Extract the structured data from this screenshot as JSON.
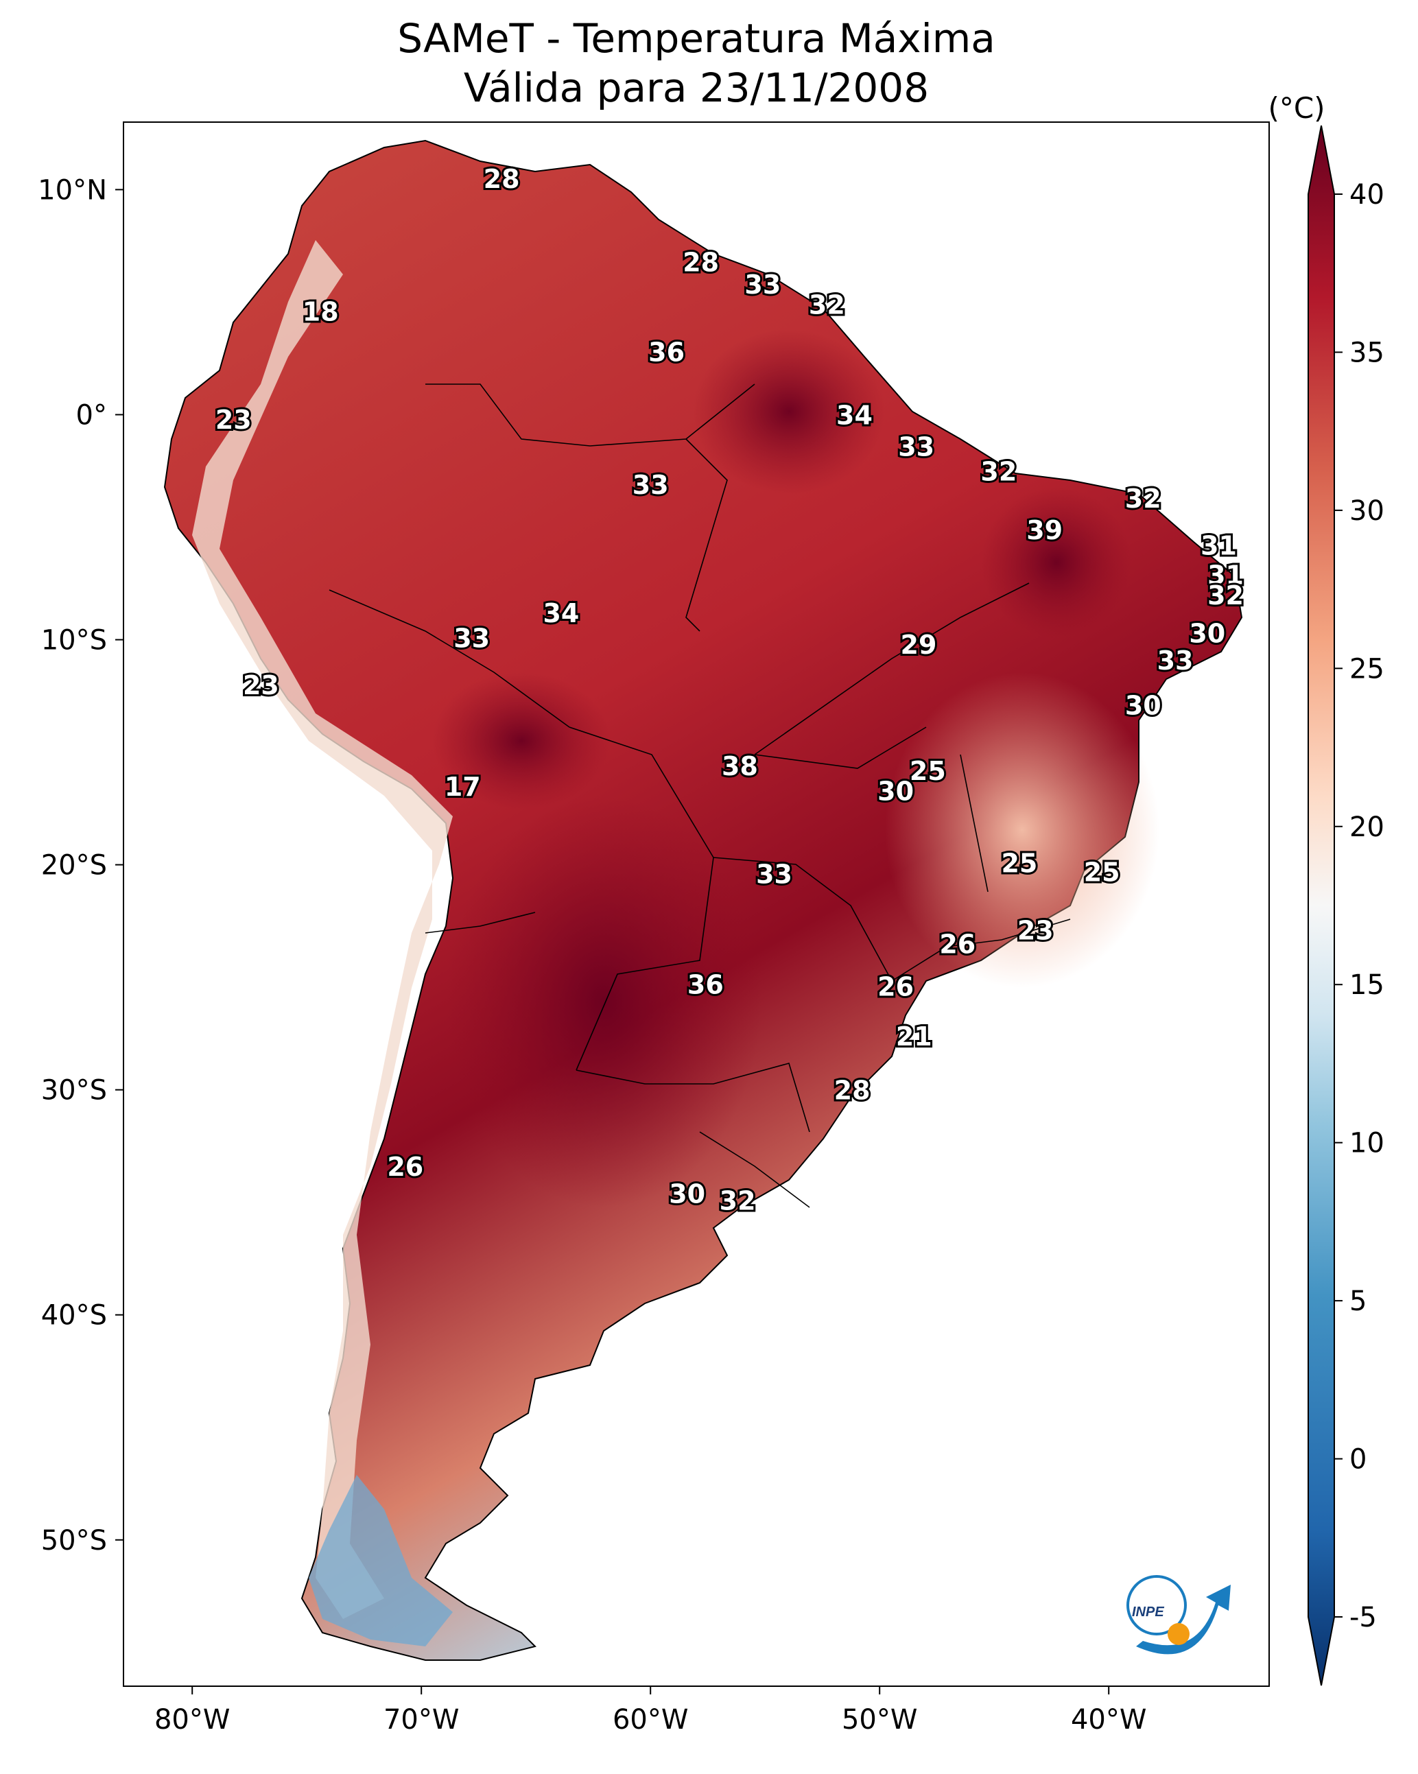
{
  "title": {
    "line1": "SAMeT - Temperatura Máxima",
    "line2": "Válida para 23/11/2008"
  },
  "map": {
    "lon_labels": [
      "80°W",
      "70°W",
      "60°W",
      "50°W",
      "40°W"
    ],
    "lat_labels": [
      "10°N",
      "0°",
      "10°S",
      "20°S",
      "30°S",
      "40°S",
      "50°S"
    ],
    "lon_values": [
      -80,
      -70,
      -60,
      -50,
      -40
    ],
    "lat_values": [
      10,
      0,
      -10,
      -20,
      -30,
      -40,
      -50
    ],
    "extent": {
      "lon": [
        -83,
        -33
      ],
      "lat": [
        -56.5,
        13
      ]
    },
    "logo_text": "INPE"
  },
  "colorbar": {
    "unit": "(°C)",
    "ticks": [
      "40",
      "35",
      "30",
      "25",
      "20",
      "15",
      "10",
      "5",
      "0",
      "-5"
    ],
    "tick_values": [
      40,
      35,
      30,
      25,
      20,
      15,
      10,
      5,
      0,
      -5
    ],
    "range": [
      -5,
      40
    ],
    "colors": [
      "#08306b",
      "#2166ac",
      "#4393c3",
      "#92c5de",
      "#d1e5f0",
      "#f7f7f7",
      "#fddbc7",
      "#f4a582",
      "#d6604d",
      "#b2182b",
      "#67001f"
    ]
  },
  "station_values": [
    {
      "value": "28",
      "lon": -66.5,
      "lat": 10.5
    },
    {
      "value": "18",
      "lon": -74.4,
      "lat": 4.6
    },
    {
      "value": "28",
      "lon": -57.8,
      "lat": 6.8
    },
    {
      "value": "33",
      "lon": -55.1,
      "lat": 5.8
    },
    {
      "value": "32",
      "lon": -52.3,
      "lat": 4.9
    },
    {
      "value": "36",
      "lon": -59.3,
      "lat": 2.8
    },
    {
      "value": "23",
      "lon": -78.2,
      "lat": -0.2
    },
    {
      "value": "34",
      "lon": -51.1,
      "lat": 0.0
    },
    {
      "value": "33",
      "lon": -48.4,
      "lat": -1.4
    },
    {
      "value": "33",
      "lon": -60.0,
      "lat": -3.1
    },
    {
      "value": "32",
      "lon": -44.8,
      "lat": -2.5
    },
    {
      "value": "32",
      "lon": -38.5,
      "lat": -3.7
    },
    {
      "value": "39",
      "lon": -42.8,
      "lat": -5.1
    },
    {
      "value": "31",
      "lon": -35.2,
      "lat": -5.8
    },
    {
      "value": "31",
      "lon": -34.9,
      "lat": -7.1
    },
    {
      "value": "32",
      "lon": -34.9,
      "lat": -8.0
    },
    {
      "value": "34",
      "lon": -63.9,
      "lat": -8.8
    },
    {
      "value": "33",
      "lon": -67.8,
      "lat": -9.9
    },
    {
      "value": "30",
      "lon": -35.7,
      "lat": -9.7
    },
    {
      "value": "29",
      "lon": -48.3,
      "lat": -10.2
    },
    {
      "value": "23",
      "lon": -77.0,
      "lat": -12.0
    },
    {
      "value": "33",
      "lon": -37.1,
      "lat": -10.9
    },
    {
      "value": "30",
      "lon": -38.5,
      "lat": -12.9
    },
    {
      "value": "38",
      "lon": -56.1,
      "lat": -15.6
    },
    {
      "value": "25",
      "lon": -47.9,
      "lat": -15.8
    },
    {
      "value": "17",
      "lon": -68.2,
      "lat": -16.5
    },
    {
      "value": "30",
      "lon": -49.3,
      "lat": -16.7
    },
    {
      "value": "25",
      "lon": -43.9,
      "lat": -19.9
    },
    {
      "value": "25",
      "lon": -40.3,
      "lat": -20.3
    },
    {
      "value": "33",
      "lon": -54.6,
      "lat": -20.4
    },
    {
      "value": "23",
      "lon": -43.2,
      "lat": -22.9
    },
    {
      "value": "26",
      "lon": -46.6,
      "lat": -23.5
    },
    {
      "value": "36",
      "lon": -57.6,
      "lat": -25.3
    },
    {
      "value": "26",
      "lon": -49.3,
      "lat": -25.4
    },
    {
      "value": "21",
      "lon": -48.5,
      "lat": -27.6
    },
    {
      "value": "28",
      "lon": -51.2,
      "lat": -30.0
    },
    {
      "value": "26",
      "lon": -70.7,
      "lat": -33.4
    },
    {
      "value": "30",
      "lon": -58.4,
      "lat": -34.6
    },
    {
      "value": "32",
      "lon": -56.2,
      "lat": -34.9
    }
  ]
}
